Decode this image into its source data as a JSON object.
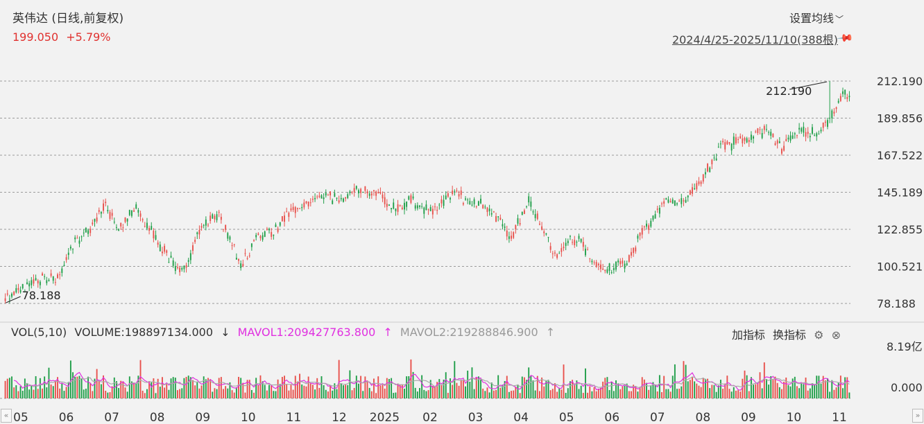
{
  "header": {
    "title": "英伟达 (日线,前复权)",
    "price": "199.050",
    "change": "+5.79%",
    "settings_label": "设置均线",
    "date_range": "2024/4/25-2025/11/10(388根)"
  },
  "volume_panel": {
    "label": "VOL(5,10)",
    "volume": "VOLUME:198897134.000",
    "volume_arrow": "↓",
    "mavol1": "MAVOL1:209427763.800",
    "mavol1_arrow": "↑",
    "mavol2": "MAVOL2:219288846.900",
    "mavol2_arrow": "↑",
    "add_indicator": "加指标",
    "switch_indicator": "换指标",
    "y_top_label": "8.19亿",
    "y_bottom_label": "0.000"
  },
  "colors": {
    "up": "#e8504b",
    "down": "#1f9e48",
    "mavol1": "#e030e0",
    "mavol2": "#aaaaaa",
    "grid": "#9a9a9a"
  },
  "chart_data": {
    "type": "candlestick",
    "price_axis_ticks": [
      "212.190",
      "189.856",
      "167.522",
      "145.189",
      "122.855",
      "100.521",
      "78.188"
    ],
    "ylim": [
      78.188,
      212.19
    ],
    "annotations": [
      {
        "label": "212.190",
        "value": 212.19,
        "kind": "high"
      },
      {
        "label": "78.188",
        "value": 78.188,
        "kind": "low"
      }
    ],
    "x_tick_labels": [
      "05",
      "06",
      "07",
      "08",
      "09",
      "10",
      "11",
      "12",
      "2025",
      "02",
      "03",
      "04",
      "05",
      "06",
      "07",
      "08",
      "09",
      "10",
      "11"
    ],
    "bar_count": 388,
    "anchors": [
      [
        0,
        80
      ],
      [
        8,
        88
      ],
      [
        18,
        93
      ],
      [
        25,
        95
      ],
      [
        30,
        112
      ],
      [
        40,
        125
      ],
      [
        45,
        138
      ],
      [
        52,
        125
      ],
      [
        60,
        135
      ],
      [
        68,
        120
      ],
      [
        78,
        100
      ],
      [
        82,
        98
      ],
      [
        90,
        125
      ],
      [
        98,
        130
      ],
      [
        104,
        115
      ],
      [
        108,
        102
      ],
      [
        115,
        118
      ],
      [
        122,
        120
      ],
      [
        130,
        132
      ],
      [
        140,
        140
      ],
      [
        148,
        143
      ],
      [
        155,
        140
      ],
      [
        162,
        148
      ],
      [
        170,
        145
      ],
      [
        178,
        136
      ],
      [
        186,
        140
      ],
      [
        196,
        133
      ],
      [
        205,
        145
      ],
      [
        214,
        140
      ],
      [
        222,
        135
      ],
      [
        232,
        118
      ],
      [
        240,
        140
      ],
      [
        252,
        108
      ],
      [
        262,
        118
      ],
      [
        270,
        102
      ],
      [
        278,
        98
      ],
      [
        285,
        104
      ],
      [
        292,
        120
      ],
      [
        302,
        138
      ],
      [
        312,
        140
      ],
      [
        318,
        150
      ],
      [
        328,
        172
      ],
      [
        338,
        176
      ],
      [
        348,
        182
      ],
      [
        356,
        172
      ],
      [
        364,
        182
      ],
      [
        372,
        180
      ],
      [
        378,
        188
      ],
      [
        384,
        205
      ],
      [
        388,
        199
      ]
    ],
    "volume_scale_max": "8.19亿"
  }
}
